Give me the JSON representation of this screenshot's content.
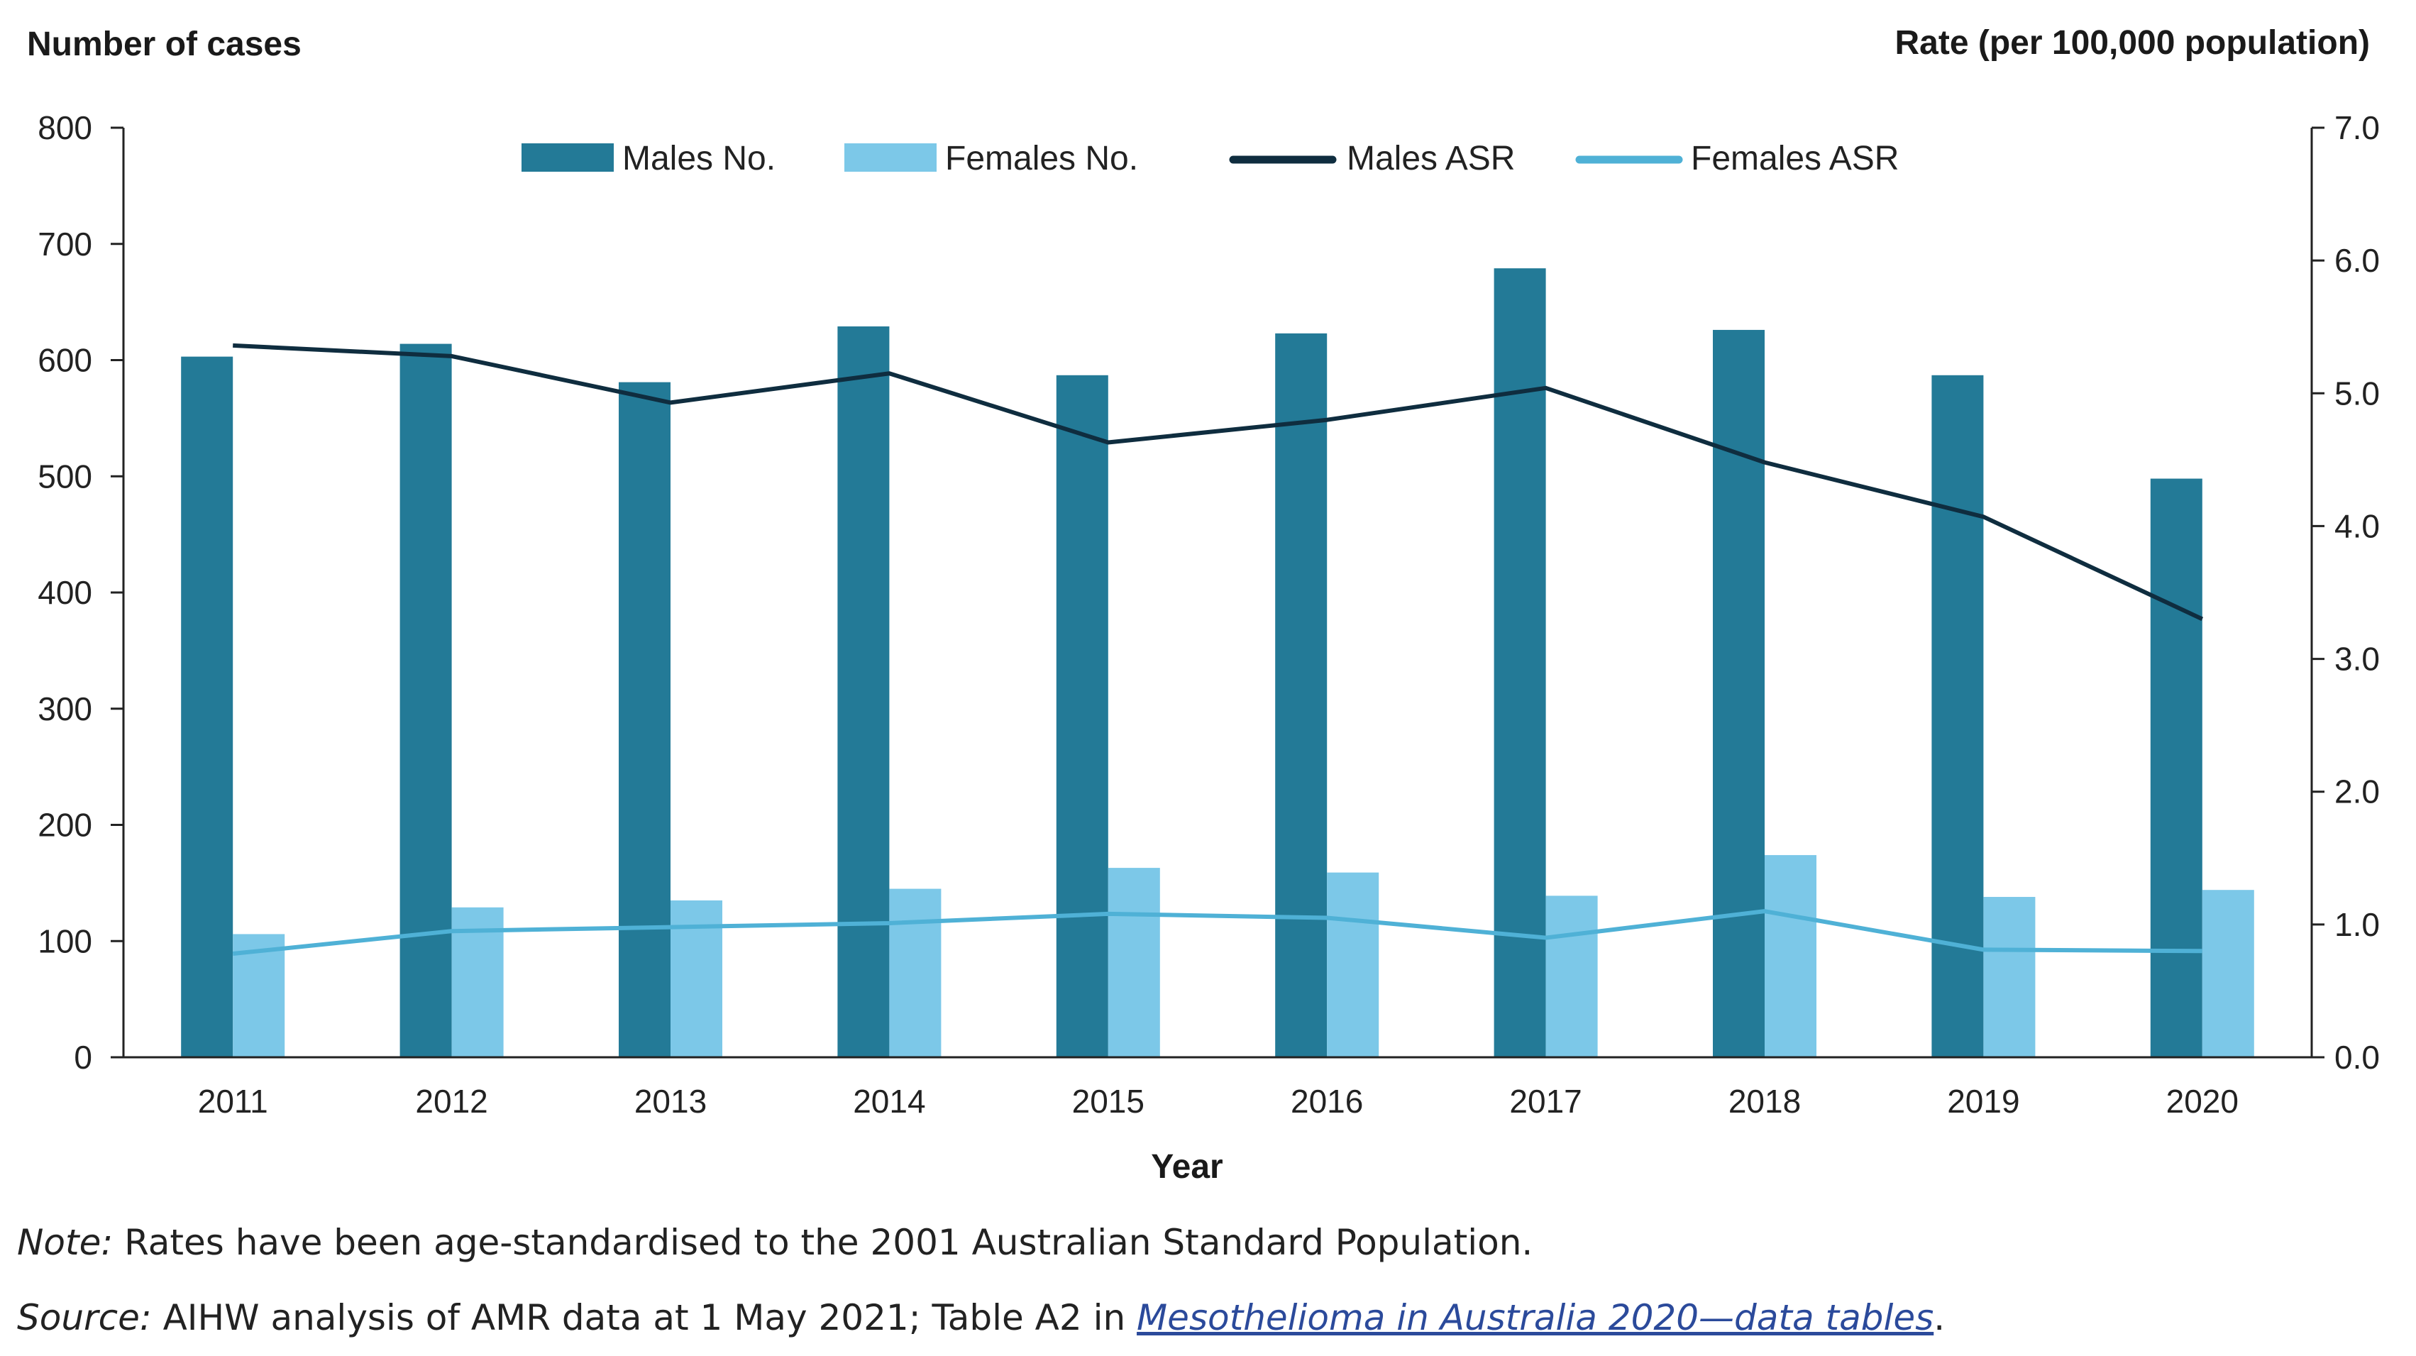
{
  "chart_data": {
    "type": "bar+line",
    "title": "",
    "categories": [
      "2011",
      "2012",
      "2013",
      "2014",
      "2015",
      "2016",
      "2017",
      "2018",
      "2019",
      "2020"
    ],
    "xlabel": "Year",
    "ylabel_left": "Number of cases",
    "ylabel_right": "Rate (per 100,000 population)",
    "ylim_left": [
      0,
      800
    ],
    "ylim_right": [
      0.0,
      7.0
    ],
    "yticks_left": [
      "0",
      "100",
      "200",
      "300",
      "400",
      "500",
      "600",
      "700",
      "800"
    ],
    "yticks_right": [
      "0.0",
      "1.0",
      "2.0",
      "3.0",
      "4.0",
      "5.0",
      "6.0",
      "7.0"
    ],
    "bar_series": [
      {
        "name": "Males No.",
        "color": "#237a97",
        "values": [
          603,
          614,
          581,
          629,
          587,
          623,
          679,
          626,
          587,
          498
        ]
      },
      {
        "name": "Females No.",
        "color": "#7cc8e8",
        "values": [
          106,
          129,
          135,
          145,
          163,
          159,
          139,
          174,
          138,
          144
        ]
      }
    ],
    "line_series": [
      {
        "name": "Males ASR",
        "color": "#0f2d3f",
        "axis": "right",
        "values": [
          5.36,
          5.28,
          4.93,
          5.15,
          4.63,
          4.8,
          5.04,
          4.48,
          4.07,
          3.3
        ]
      },
      {
        "name": "Females ASR",
        "color": "#4fb1d6",
        "axis": "right",
        "values": [
          0.78,
          0.95,
          0.98,
          1.01,
          1.08,
          1.05,
          0.9,
          1.1,
          0.81,
          0.8
        ]
      }
    ],
    "legend_position": "top-center",
    "grid": false
  },
  "footnotes": {
    "note_label": "Note:",
    "note_text": " Rates have been age-standardised to the 2001 Australian Standard Population.",
    "source_label": "Source:",
    "source_text": " AIHW analysis of AMR data at 1 May 2021; Table A2 in ",
    "source_link": "Mesothelioma in Australia 2020—data tables",
    "source_end": "."
  }
}
